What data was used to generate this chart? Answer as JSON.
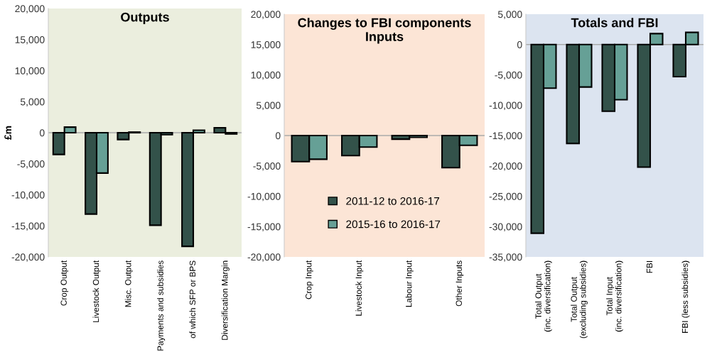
{
  "chart_data": [
    {
      "type": "bar",
      "title": "Outputs",
      "ylabel": "£m",
      "categories": [
        "Crop Output",
        "Livestock Output",
        "Misc. Output",
        "Payments and subsidies",
        "of which SFP or BPS",
        "Diversification Margin"
      ],
      "series": [
        {
          "color": "#33524a",
          "values": [
            -3500,
            -13100,
            -1100,
            -14900,
            -18300,
            800
          ]
        },
        {
          "color": "#66a096",
          "values": [
            900,
            -6500,
            100,
            -300,
            400,
            -200
          ]
        }
      ],
      "ylim": [
        -20000,
        20000
      ],
      "yticks": [
        {
          "value": -20000,
          "label": "-20,000"
        },
        {
          "value": -15000,
          "label": "-15,000"
        },
        {
          "value": -10000,
          "label": "-10,000"
        },
        {
          "value": -5000,
          "label": "-5,000"
        },
        0,
        {
          "value": 5000,
          "label": "5,000"
        },
        {
          "value": 10000,
          "label": "10,000"
        },
        {
          "value": 15000,
          "label": "15,000"
        },
        {
          "value": 20000,
          "label": "20,000"
        }
      ],
      "grid": false,
      "legend": false,
      "ref_lines": [
        {
          "axis": "y",
          "value": 0,
          "color": "#aaaaaa"
        }
      ]
    },
    {
      "type": "bar",
      "title": "Changes to FBI components\nInputs",
      "categories": [
        "Crop Input",
        "Livestock Input",
        "Labour Input",
        "Other Inputs"
      ],
      "series": [
        {
          "name": "2011-12 to 2016-17",
          "color": "#33524a",
          "values": [
            -4300,
            -3300,
            -600,
            -5300
          ]
        },
        {
          "name": "2015-16 to 2016-17",
          "color": "#66a096",
          "values": [
            -3900,
            -1900,
            -300,
            -1600
          ]
        }
      ],
      "ylim": [
        -20000,
        20000
      ],
      "yticks": [
        {
          "value": -20000,
          "label": "-20,000"
        },
        {
          "value": -15000,
          "label": "-15,000"
        },
        {
          "value": -10000,
          "label": "-10,000"
        },
        {
          "value": -5000,
          "label": "-5,000"
        },
        0,
        {
          "value": 5000,
          "label": "5,000"
        },
        {
          "value": 10000,
          "label": "10,000"
        },
        {
          "value": 15000,
          "label": "15,000"
        },
        {
          "value": 20000,
          "label": "20,000"
        }
      ],
      "grid": false,
      "legend": "bottom",
      "ref_lines": [
        {
          "axis": "y",
          "value": 0,
          "color": "#aaaaaa"
        }
      ]
    },
    {
      "type": "bar",
      "title": "Totals and FBI",
      "categories": [
        "Total Output\n(inc. diversification)",
        "Total Output\n(excluding subsidies)",
        "Total Input\n(inc. diversification)",
        "FBI",
        "FBI (less subsidies)"
      ],
      "series": [
        {
          "color": "#33524a",
          "values": [
            -31100,
            -16300,
            -11000,
            -20200,
            -5300
          ]
        },
        {
          "color": "#66a096",
          "values": [
            -7200,
            -7000,
            -9100,
            1800,
            2000
          ]
        }
      ],
      "ylim": [
        -35000,
        5000
      ],
      "yticks": [
        {
          "value": -35000,
          "label": "-35,000"
        },
        {
          "value": -30000,
          "label": "-30,000"
        },
        {
          "value": -25000,
          "label": "-25,000"
        },
        {
          "value": -20000,
          "label": "-20,000"
        },
        {
          "value": -15000,
          "label": "-15,000"
        },
        {
          "value": -10000,
          "label": "-10,000"
        },
        {
          "value": -5000,
          "label": "-5,000"
        },
        0,
        {
          "value": 5000,
          "label": "5,000"
        }
      ],
      "grid": false,
      "legend": false,
      "ref_lines": [
        {
          "axis": "y",
          "value": 0,
          "color": "#aaaaaa"
        }
      ]
    }
  ]
}
